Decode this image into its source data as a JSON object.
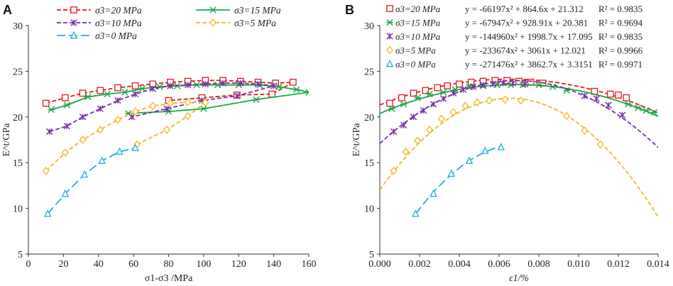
{
  "figure": {
    "panels": [
      "A",
      "B"
    ]
  },
  "chart_data": [
    {
      "panel": "A",
      "type": "line",
      "title": "",
      "xlabel": "σ1-σ3 /MPa",
      "ylabel": "E^t/GPa",
      "xlim": [
        0,
        160
      ],
      "ylim": [
        5,
        30
      ],
      "xticks": [
        0,
        20,
        40,
        60,
        80,
        100,
        120,
        140,
        160
      ],
      "yticks": [
        5,
        10,
        15,
        20,
        25,
        30
      ],
      "grid": false,
      "legend_position": "top",
      "series": [
        {
          "name": "σ3=20 MPa",
          "color": "#e41a1c",
          "dash": "dashed",
          "marker": "square",
          "x": [
            10,
            21,
            31,
            41,
            51,
            61,
            71,
            81,
            91,
            101,
            111,
            121,
            131,
            141,
            151,
            139,
            119,
            99,
            80
          ],
          "y": [
            21.5,
            22.1,
            22.6,
            22.9,
            23.2,
            23.4,
            23.6,
            23.8,
            23.9,
            24.0,
            24.0,
            23.9,
            23.8,
            23.7,
            23.8,
            22.5,
            22.4,
            22.1,
            21.8
          ]
        },
        {
          "name": "σ3=15 MPa",
          "color": "#1aaa49",
          "dash": "solid",
          "marker": "asterisk",
          "x": [
            13,
            22,
            34,
            45,
            55,
            65,
            75,
            85,
            96,
            108,
            120,
            132,
            143,
            153,
            160,
            130,
            100,
            80,
            57
          ],
          "y": [
            20.8,
            21.3,
            22.2,
            22.5,
            22.7,
            23.1,
            23.3,
            23.4,
            23.5,
            23.5,
            23.5,
            23.5,
            23.3,
            23.0,
            22.7,
            21.9,
            20.9,
            20.6,
            20.4
          ]
        },
        {
          "name": "σ3=10 MPa",
          "color": "#7a2fa8",
          "dash": "dashed",
          "marker": "cross",
          "x": [
            12,
            22,
            31,
            41,
            51,
            61,
            71,
            81,
            91,
            101,
            111,
            121,
            131,
            140,
            119,
            99,
            79,
            59
          ],
          "y": [
            18.4,
            19.0,
            20.0,
            20.9,
            21.8,
            22.5,
            23.1,
            23.4,
            23.5,
            23.6,
            23.7,
            23.7,
            23.6,
            23.4,
            22.3,
            21.8,
            20.9,
            20.0
          ]
        },
        {
          "name": "σ3=5 MPa",
          "color": "#f2b722",
          "dash": "dashed",
          "marker": "diamond",
          "x": [
            10,
            21,
            31,
            41,
            51,
            61,
            71,
            81,
            91,
            101,
            91,
            79,
            62
          ],
          "y": [
            14.1,
            16.1,
            17.5,
            18.6,
            19.7,
            20.6,
            21.2,
            21.5,
            21.6,
            21.6,
            20.1,
            18.6,
            17.0
          ]
        },
        {
          "name": "σ3=0 MPa",
          "color": "#20b2d8",
          "dash": "longdash",
          "marker": "triangle",
          "x": [
            11,
            21,
            32,
            42,
            52,
            61
          ],
          "y": [
            9.4,
            11.6,
            13.7,
            15.2,
            16.2,
            16.6
          ]
        }
      ]
    },
    {
      "panel": "B",
      "type": "scatter",
      "title": "",
      "xlabel": "ε1/%",
      "ylabel": "E^t/GPa",
      "xlim": [
        0,
        0.014
      ],
      "ylim": [
        5,
        30
      ],
      "xticks": [
        0,
        0.002,
        0.004,
        0.006,
        0.008,
        0.01,
        0.012,
        0.014
      ],
      "xtick_labels": [
        "0.000",
        "0.002",
        "0.004",
        "0.006",
        "0.008",
        "0.010",
        "0.012",
        "0.014"
      ],
      "yticks": [
        5,
        10,
        15,
        20,
        25,
        30
      ],
      "grid": false,
      "legend_position": "top",
      "series": [
        {
          "name": "σ3=20 MPa",
          "color": "#e41a1c",
          "dash": "dashed",
          "marker": "square",
          "equation": "y = -66197x² + 864.6x + 21.312",
          "r2": "R² = 0.9835",
          "coef": [
            -66197,
            864.6,
            21.312
          ],
          "x": [
            0.0005,
            0.0011,
            0.0017,
            0.0023,
            0.0029,
            0.0034,
            0.004,
            0.0046,
            0.0052,
            0.0058,
            0.0064,
            0.007,
            0.0076,
            0.0082,
            0.0108,
            0.0116,
            0.012,
            0.0124
          ],
          "y": [
            21.5,
            22.1,
            22.6,
            22.9,
            23.2,
            23.4,
            23.6,
            23.8,
            23.9,
            24.0,
            24.0,
            23.9,
            23.8,
            23.7,
            22.8,
            22.5,
            22.4,
            22.1
          ]
        },
        {
          "name": "σ3=15 MPa",
          "color": "#1aaa49",
          "dash": "solid",
          "marker": "asterisk",
          "equation": "y = -67947x² + 928.91x + 20.381",
          "r2": "R² = 0.9694",
          "coef": [
            -67947,
            928.91,
            20.381
          ],
          "x": [
            0.0006,
            0.0012,
            0.0019,
            0.0025,
            0.0032,
            0.0038,
            0.0045,
            0.0052,
            0.0059,
            0.0066,
            0.0072,
            0.008,
            0.0087,
            0.0094,
            0.0125,
            0.013,
            0.0134,
            0.0138
          ],
          "y": [
            20.9,
            21.4,
            22.1,
            22.5,
            22.7,
            23.0,
            23.3,
            23.4,
            23.5,
            23.5,
            23.5,
            23.5,
            23.3,
            22.9,
            21.4,
            21.0,
            20.7,
            20.5
          ]
        },
        {
          "name": "σ3=10 MPa",
          "color": "#7a2fa8",
          "dash": "dashed",
          "marker": "cross",
          "equation": "y = -144960x² + 1998.7x + 17.095",
          "r2": "R² = 0.9835",
          "coef": [
            -144960,
            1998.7,
            17.095
          ],
          "x": [
            0.0007,
            0.0012,
            0.0017,
            0.0022,
            0.0027,
            0.0032,
            0.0037,
            0.0042,
            0.0047,
            0.0052,
            0.0057,
            0.0062,
            0.0067,
            0.0073,
            0.0103,
            0.0109,
            0.0115,
            0.0122
          ],
          "y": [
            18.4,
            19.1,
            20.0,
            20.7,
            21.4,
            22.0,
            22.6,
            23.0,
            23.3,
            23.5,
            23.6,
            23.7,
            23.7,
            23.6,
            22.3,
            22.0,
            21.3,
            20.2
          ]
        },
        {
          "name": "σ3=5 MPa",
          "color": "#f2b722",
          "dash": "dashed",
          "marker": "diamond",
          "equation": "y = -233674x² + 3061x + 12.021",
          "r2": "R² = 0.9966",
          "coef": [
            -233674,
            3061,
            12.021
          ],
          "x": [
            0.0007,
            0.0013,
            0.0019,
            0.0025,
            0.0031,
            0.0037,
            0.0043,
            0.0049,
            0.0055,
            0.0063,
            0.0071,
            0.0094,
            0.0103,
            0.0111
          ],
          "y": [
            14.1,
            16.2,
            17.4,
            18.6,
            19.8,
            20.5,
            21.2,
            21.6,
            21.8,
            21.9,
            21.8,
            20.1,
            18.5,
            17.0
          ]
        },
        {
          "name": "σ3=0 MPa",
          "color": "#20b2d8",
          "dash": "longdash",
          "marker": "triangle",
          "equation": "y = -271476x² + 3862.7x + 3.3151",
          "r2": "R² = 0.9971",
          "coef": [
            -271476,
            3862.7,
            3.3151
          ],
          "x": [
            0.0018,
            0.0027,
            0.0036,
            0.0045,
            0.0053,
            0.0061
          ],
          "y": [
            9.4,
            11.6,
            13.8,
            15.2,
            16.3,
            16.7
          ],
          "fit_range": [
            0.0018,
            0.0061
          ]
        }
      ]
    }
  ]
}
